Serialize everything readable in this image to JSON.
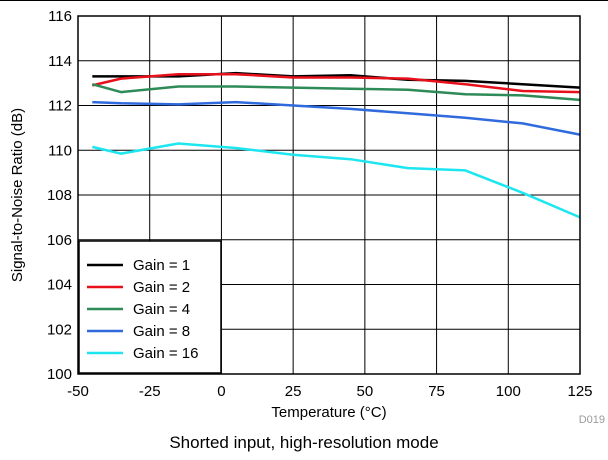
{
  "figure": {
    "caption": "Shorted input, high-resolution mode",
    "code": "D019"
  },
  "chart_data": {
    "type": "line",
    "title": "",
    "xlabel": "Temperature (°C)",
    "ylabel": "Signal-to-Noise Ratio (dB)",
    "xlim": [
      -50,
      125
    ],
    "ylim": [
      100,
      116
    ],
    "xticks": [
      -50,
      -25,
      0,
      25,
      50,
      75,
      100,
      125
    ],
    "yticks": [
      100,
      102,
      104,
      106,
      108,
      110,
      112,
      114,
      116
    ],
    "grid": true,
    "legend_position": "bottom-left",
    "series": [
      {
        "name": "Gain = 1",
        "color": "#000000",
        "x": [
          -45,
          -35,
          -15,
          5,
          25,
          45,
          65,
          85,
          105,
          125
        ],
        "y": [
          113.3,
          113.3,
          113.3,
          113.45,
          113.3,
          113.35,
          113.15,
          113.1,
          112.95,
          112.8
        ]
      },
      {
        "name": "Gain = 2",
        "color": "#e8101b",
        "x": [
          -45,
          -35,
          -15,
          5,
          25,
          45,
          65,
          85,
          105,
          125
        ],
        "y": [
          112.9,
          113.2,
          113.4,
          113.4,
          113.25,
          113.25,
          113.2,
          112.95,
          112.65,
          112.6
        ]
      },
      {
        "name": "Gain = 4",
        "color": "#2e8b57",
        "x": [
          -45,
          -35,
          -15,
          5,
          25,
          45,
          65,
          85,
          105,
          125
        ],
        "y": [
          112.95,
          112.6,
          112.85,
          112.85,
          112.8,
          112.75,
          112.7,
          112.5,
          112.45,
          112.25
        ]
      },
      {
        "name": "Gain = 8",
        "color": "#2f6bdc",
        "x": [
          -45,
          -35,
          -15,
          5,
          25,
          45,
          65,
          85,
          105,
          125
        ],
        "y": [
          112.15,
          112.1,
          112.05,
          112.15,
          112.0,
          111.85,
          111.65,
          111.45,
          111.2,
          110.7
        ]
      },
      {
        "name": "Gain = 16",
        "color": "#1ee6f0",
        "x": [
          -45,
          -35,
          -15,
          5,
          25,
          45,
          65,
          85,
          105,
          125
        ],
        "y": [
          110.15,
          109.85,
          110.3,
          110.1,
          109.8,
          109.6,
          109.2,
          109.1,
          108.1,
          107.0
        ]
      }
    ]
  }
}
